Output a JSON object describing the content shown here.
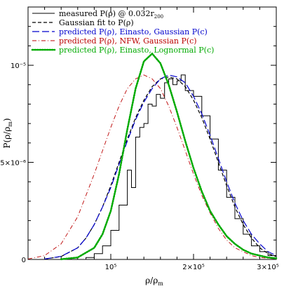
{
  "chart_data": {
    "type": "line",
    "title": "",
    "xlabel": "ρ/ρm",
    "ylabel": "P(ρ/ρm)",
    "xlim": [
      0,
      300000
    ],
    "ylim": [
      0,
      1.3e-05
    ],
    "x_tick_labels": [
      "10⁵",
      "2×10⁵",
      "3×10⁵"
    ],
    "x_tick_values": [
      100000,
      200000,
      300000
    ],
    "y_tick_labels": [
      "0",
      "5×10⁻⁶",
      "10⁻⁵"
    ],
    "y_tick_values": [
      0,
      5e-06,
      1e-05
    ],
    "legend_position": "top-left",
    "series": [
      {
        "name": "measured P(ρ) @ 0.032r200",
        "color": "#000000",
        "style": "solid-step",
        "x": [
          60000,
          70000,
          80000,
          90000,
          100000,
          110000,
          120000,
          125000,
          130000,
          135000,
          140000,
          145000,
          150000,
          155000,
          160000,
          165000,
          170000,
          175000,
          180000,
          185000,
          190000,
          200000,
          210000,
          220000,
          230000,
          240000,
          250000,
          260000,
          270000,
          280000,
          290000,
          300000
        ],
        "y": [
          0,
          1e-07,
          3e-07,
          7e-07,
          1.5e-06,
          2.8e-06,
          4.6e-06,
          3.7e-06,
          6.3e-06,
          6.8e-06,
          7e-06,
          8e-06,
          7.9e-06,
          8.5e-06,
          8.3e-06,
          9.1e-06,
          9.3e-06,
          9e-06,
          9.2e-06,
          9.5e-06,
          8.7e-06,
          8.4e-06,
          7.4e-06,
          6.2e-06,
          4.6e-06,
          3.2e-06,
          2.1e-06,
          1.3e-06,
          7e-07,
          4e-07,
          2e-07,
          1e-07
        ]
      },
      {
        "name": "Gaussian fit to P(ρ)",
        "color": "#000000",
        "style": "dashed",
        "x": [
          20000,
          40000,
          60000,
          70000,
          80000,
          90000,
          100000,
          110000,
          120000,
          130000,
          140000,
          150000,
          160000,
          170000,
          180000,
          190000,
          200000,
          210000,
          220000,
          230000,
          240000,
          250000,
          260000,
          270000,
          280000,
          290000,
          300000
        ],
        "y": [
          2e-08,
          1.5e-07,
          6e-07,
          1.1e-06,
          1.8e-06,
          2.7e-06,
          3.8e-06,
          5e-06,
          6.2e-06,
          7.3e-06,
          8.2e-06,
          8.9e-06,
          9.3e-06,
          9.4e-06,
          9.3e-06,
          8.9e-06,
          8.2e-06,
          7.3e-06,
          6.2e-06,
          5e-06,
          3.8e-06,
          2.7e-06,
          1.8e-06,
          1.1e-06,
          6e-07,
          3e-07,
          1.5e-07
        ]
      },
      {
        "name": "predicted P(ρ), Einasto, Gaussian P(c)",
        "color": "#0000cc",
        "style": "long-dash",
        "x": [
          20000,
          40000,
          60000,
          70000,
          80000,
          90000,
          100000,
          110000,
          120000,
          130000,
          140000,
          150000,
          160000,
          170000,
          180000,
          190000,
          200000,
          210000,
          220000,
          230000,
          240000,
          250000,
          260000,
          270000,
          280000,
          290000,
          300000
        ],
        "y": [
          2e-08,
          1.6e-07,
          6e-07,
          1.1e-06,
          1.8e-06,
          2.7e-06,
          3.7e-06,
          4.9e-06,
          6.1e-06,
          7.2e-06,
          8.1e-06,
          8.8e-06,
          9.3e-06,
          9.5e-06,
          9.4e-06,
          9.1e-06,
          8.4e-06,
          7.5e-06,
          6.4e-06,
          5.2e-06,
          4e-06,
          2.9e-06,
          2e-06,
          1.3e-06,
          8e-07,
          4e-07,
          2e-07
        ]
      },
      {
        "name": "predicted P(ρ), NFW, Gaussian P(c)",
        "color": "#bb0000",
        "style": "dash-dot",
        "x": [
          0,
          20000,
          40000,
          60000,
          80000,
          100000,
          110000,
          120000,
          130000,
          140000,
          150000,
          160000,
          170000,
          180000,
          190000,
          200000,
          210000,
          220000,
          230000,
          240000,
          250000,
          260000,
          270000,
          280000,
          290000,
          300000
        ],
        "y": [
          2e-08,
          2e-07,
          8e-07,
          2.2e-06,
          4.4e-06,
          6.8e-06,
          7.9e-06,
          8.8e-06,
          9.3e-06,
          9.5e-06,
          9.3e-06,
          8.8e-06,
          7.9e-06,
          6.8e-06,
          5.6e-06,
          4.4e-06,
          3.3e-06,
          2.4e-06,
          1.6e-06,
          1e-06,
          6e-07,
          4e-07,
          2e-07,
          1e-07,
          6e-08,
          3e-08
        ]
      },
      {
        "name": "predicted P(ρ), Einasto, Lognormal P(c)",
        "color": "#00aa00",
        "style": "dotted",
        "x": [
          40000,
          60000,
          80000,
          90000,
          100000,
          110000,
          120000,
          130000,
          140000,
          150000,
          160000,
          170000,
          180000,
          190000,
          200000,
          210000,
          220000,
          230000,
          240000,
          250000,
          260000,
          270000,
          280000,
          290000,
          300000
        ],
        "y": [
          1e-08,
          1e-07,
          6e-07,
          1.3e-06,
          2.5e-06,
          4.4e-06,
          6.7e-06,
          8.8e-06,
          1.02e-05,
          1.06e-05,
          1.01e-05,
          9e-06,
          7.6e-06,
          6.1e-06,
          4.7e-06,
          3.5e-06,
          2.5e-06,
          1.8e-06,
          1.2e-06,
          8e-07,
          5e-07,
          3e-07,
          2e-07,
          1e-07,
          6e-08
        ]
      }
    ]
  },
  "legend": {
    "items": [
      {
        "text": "measured P(ρ) @ 0.032r",
        "sub": "200",
        "color": "#000000"
      },
      {
        "text": "Gaussian fit to P(ρ)",
        "sub": "",
        "color": "#000000"
      },
      {
        "text": "predicted P(ρ), Einasto, Gaussian P(c)",
        "sub": "",
        "color": "#0000cc"
      },
      {
        "text": "predicted P(ρ), NFW, Gaussian P(c)",
        "sub": "",
        "color": "#bb0000"
      },
      {
        "text": "predicted P(ρ), Einasto, Lognormal P(c)",
        "sub": "",
        "color": "#00aa00"
      }
    ]
  }
}
